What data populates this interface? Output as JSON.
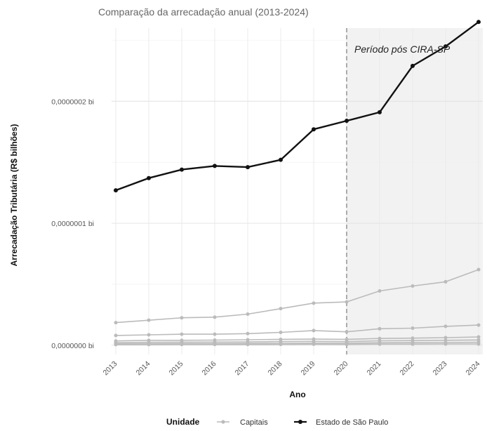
{
  "chart_data": {
    "type": "line",
    "title": "Comparação da arrecadação anual (2013-2024)",
    "xlabel": "Ano",
    "ylabel": "Arrecadação Tributária (R$ bilhões)",
    "x": [
      2013,
      2014,
      2015,
      2016,
      2017,
      2018,
      2019,
      2020,
      2021,
      2022,
      2023,
      2024
    ],
    "ylim": [
      -3e-09,
      2.6e-07
    ],
    "yticks": [
      0,
      1e-07,
      2e-07
    ],
    "ytick_labels": [
      "0,0000000 bi",
      "0,0000001 bi",
      "0,0000002 bi"
    ],
    "grid": true,
    "shaded_region": {
      "from": 2020,
      "to": 2024,
      "label": "Período pós CIRA-SP"
    },
    "reference_line_x": 2020,
    "legend": {
      "title": "Unidade",
      "position": "bottom",
      "entries": [
        "Capitais",
        "Estado de São Paulo"
      ]
    },
    "series": [
      {
        "name": "Estado de São Paulo",
        "color": "#111111",
        "values": [
          1.27e-07,
          1.37e-07,
          1.44e-07,
          1.47e-07,
          1.46e-07,
          1.52e-07,
          1.77e-07,
          1.84e-07,
          1.91e-07,
          2.29e-07,
          2.45e-07,
          2.65e-07
        ]
      },
      {
        "name": "Capitais",
        "color": "#bbbbbb",
        "values": [
          1.85e-08,
          2.05e-08,
          2.25e-08,
          2.3e-08,
          2.55e-08,
          3e-08,
          3.45e-08,
          3.55e-08,
          4.45e-08,
          4.85e-08,
          5.2e-08,
          6.2e-08
        ]
      },
      {
        "name": "Capitais",
        "color": "#bbbbbb",
        "values": [
          8e-09,
          8.5e-09,
          9e-09,
          9e-09,
          9.5e-09,
          1.05e-08,
          1.2e-08,
          1.1e-08,
          1.35e-08,
          1.4e-08,
          1.55e-08,
          1.65e-08
        ]
      },
      {
        "name": "Capitais",
        "color": "#bbbbbb",
        "values": [
          3.5e-09,
          4e-09,
          4e-09,
          4.2e-09,
          4.5e-09,
          4.8e-09,
          5e-09,
          4.8e-09,
          5.5e-09,
          5.8e-09,
          6.2e-09,
          6.8e-09
        ]
      },
      {
        "name": "Capitais",
        "color": "#bbbbbb",
        "values": [
          2.2e-09,
          2.4e-09,
          2.5e-09,
          2.6e-09,
          2.7e-09,
          3e-09,
          3.2e-09,
          3e-09,
          3.6e-09,
          3.8e-09,
          4e-09,
          4.3e-09
        ]
      },
      {
        "name": "Capitais",
        "color": "#bbbbbb",
        "values": [
          1.2e-09,
          1.3e-09,
          1.4e-09,
          1.4e-09,
          1.5e-09,
          1.6e-09,
          1.8e-09,
          1.7e-09,
          2e-09,
          2.1e-09,
          2.2e-09,
          2.4e-09
        ]
      },
      {
        "name": "Capitais",
        "color": "#bbbbbb",
        "values": [
          5e-10,
          5e-10,
          6e-10,
          6e-10,
          6e-10,
          7e-10,
          8e-10,
          7e-10,
          9e-10,
          9e-10,
          1e-09,
          1e-09
        ]
      }
    ]
  }
}
